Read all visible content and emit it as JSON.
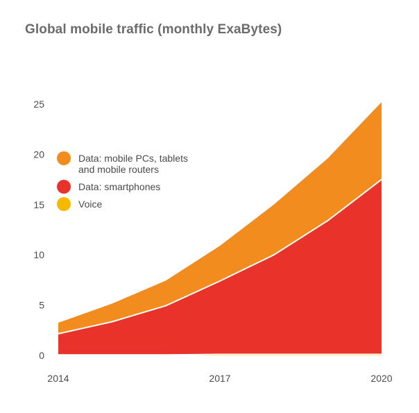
{
  "chart_data": {
    "type": "area",
    "stacked": true,
    "title": "Global mobile traffic (monthly ExaBytes)",
    "xlabel": "",
    "ylabel": "",
    "x": [
      2014,
      2015,
      2016,
      2017,
      2018,
      2019,
      2020
    ],
    "xticks": [
      "2014",
      "2017",
      "2020"
    ],
    "ylim": [
      0,
      25
    ],
    "yticks": [
      "0",
      "5",
      "10",
      "15",
      "20",
      "25"
    ],
    "grid": false,
    "legend_position": "top-left",
    "series": [
      {
        "name": "Voice",
        "color": "#f7b800",
        "values": [
          0.05,
          0.05,
          0.05,
          0.1,
          0.1,
          0.1,
          0.1
        ]
      },
      {
        "name": "Data: smartphones",
        "color": "#e8322a",
        "values": [
          2.1,
          3.3,
          4.9,
          7.3,
          9.9,
          13.3,
          17.4
        ]
      },
      {
        "name": "Data: mobile PCs, tablets and mobile routers",
        "legend_lines": [
          "Data: mobile PCs, tablets",
          "and mobile routers"
        ],
        "color": "#f28c1e",
        "values": [
          1.1,
          1.8,
          2.5,
          3.5,
          5.0,
          6.2,
          7.7
        ]
      }
    ]
  }
}
